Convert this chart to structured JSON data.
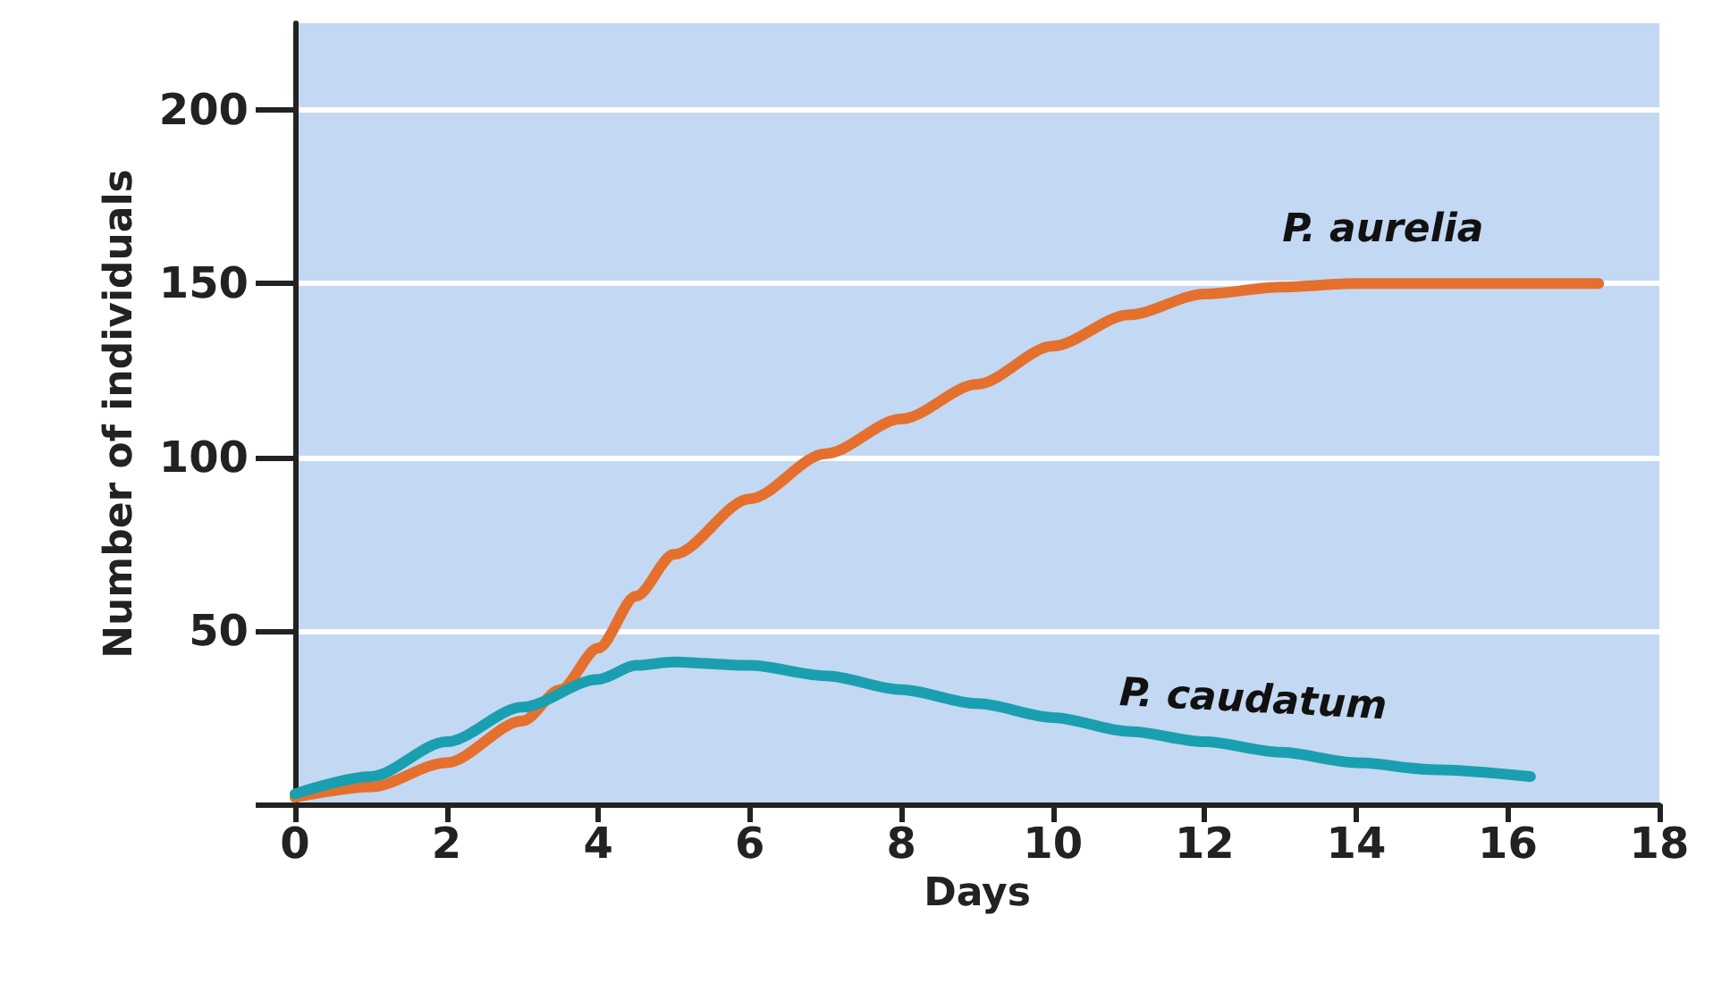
{
  "chart_data": {
    "type": "line",
    "xlabel": "Days",
    "ylabel": "Number of individuals",
    "xlim": [
      0,
      18
    ],
    "xticks": [
      0,
      2,
      4,
      6,
      8,
      10,
      12,
      14,
      16,
      18
    ],
    "ylim": [
      0,
      225
    ],
    "yticks": [
      {
        "value": 0,
        "label": null
      },
      50,
      100,
      150,
      200
    ],
    "grid": "y",
    "marker": "none",
    "line_style": "solid",
    "legend": false,
    "series": [
      {
        "name": "P. aurelia",
        "color": "#e5702e",
        "x": [
          0,
          1,
          2,
          3,
          3.5,
          4,
          4.5,
          5,
          6,
          7,
          8,
          9,
          10,
          11,
          12,
          13,
          14,
          16,
          17.2
        ],
        "values": [
          2,
          5,
          12,
          24,
          33,
          45,
          60,
          72,
          88,
          101,
          111,
          121,
          132,
          141,
          147,
          149,
          150,
          150,
          150
        ]
      },
      {
        "name": "P. caudatum",
        "color": "#1a9fb0",
        "x": [
          0,
          1,
          2,
          3,
          4,
          4.5,
          5,
          6,
          7,
          8,
          9,
          10,
          11,
          12,
          13,
          14,
          15,
          16.3
        ],
        "values": [
          3,
          8,
          18,
          28,
          36,
          40,
          41,
          40,
          37,
          33,
          29,
          25,
          21,
          18,
          15,
          12,
          10,
          8
        ]
      }
    ]
  }
}
